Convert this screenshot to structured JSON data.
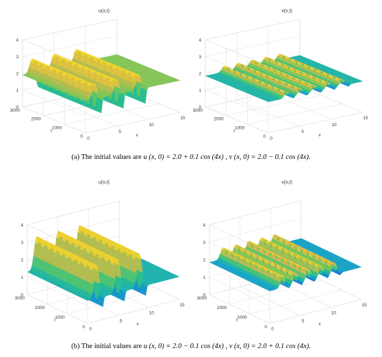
{
  "captions": [
    {
      "label": "(a)",
      "text": "The initial values are",
      "equation": "u (x, 0) = 2.0 + 0.1 cos (4x) , v (x, 0) = 2.0 − 0.1 cos (4x)."
    },
    {
      "label": "(b)",
      "text": "The initial values are",
      "equation": "u (x, 0) = 2.0 − 0.1 cos (4x) , v (x, 0) = 2.0 + 0.1 cos (4x)."
    }
  ],
  "chart_data": [
    {
      "type": "surface",
      "title": "u(x,t)",
      "xlabel": "x",
      "ylabel": "t",
      "zlabel": "",
      "xlim": [
        0,
        15
      ],
      "ylim": [
        0,
        3000
      ],
      "zlim": [
        0,
        4
      ],
      "xticks": [
        "0",
        "5",
        "10",
        "15"
      ],
      "yticks": [
        "0",
        "1000",
        "2000",
        "3000"
      ],
      "zticks": [
        "0",
        "1",
        "2",
        "3",
        "4"
      ],
      "ridge_x": [
        1.5,
        5.0,
        8.5
      ],
      "base_value": 1.9,
      "peak_value": 2.75,
      "trough_value": 0.05,
      "colormap": [
        "#3a22a6",
        "#1f64dc",
        "#16a9c3",
        "#2cc08a",
        "#7ac758",
        "#d2b84c",
        "#f8dd22"
      ]
    },
    {
      "type": "surface",
      "title": "v(x,t)",
      "xlabel": "x",
      "ylabel": "t",
      "zlabel": "",
      "xlim": [
        0,
        15
      ],
      "ylim": [
        0,
        3000
      ],
      "zlim": [
        0,
        4
      ],
      "xticks": [
        "0",
        "5",
        "10",
        "15"
      ],
      "yticks": [
        "0",
        "1000",
        "2000",
        "3000"
      ],
      "zticks": [
        "0",
        "1",
        "2",
        "3",
        "4"
      ],
      "ridge_x": [
        3.0,
        5.2,
        7.4,
        9.6,
        11.8
      ],
      "base_value": 1.85,
      "peak_value": 2.2,
      "trough_value": 1.6,
      "colormap": [
        "#3a22a6",
        "#1f64dc",
        "#16a9c3",
        "#2cc08a",
        "#7ac758",
        "#d2b84c",
        "#f8dd22"
      ]
    },
    {
      "type": "surface",
      "title": "u(x,t)",
      "xlabel": "x",
      "ylabel": "t",
      "zlabel": "",
      "xlim": [
        0,
        15
      ],
      "ylim": [
        0,
        3000
      ],
      "zlim": [
        0,
        4
      ],
      "xticks": [
        "0",
        "5",
        "10",
        "15"
      ],
      "yticks": [
        "0",
        "1000",
        "2000",
        "3000"
      ],
      "zticks": [
        "0",
        "1",
        "2",
        "3",
        "4"
      ],
      "ridge_x": [
        1.5,
        5.0,
        8.5
      ],
      "base_value": 1.3,
      "peak_value": 3.2,
      "trough_value": 0.05,
      "colormap": [
        "#3a22a6",
        "#1f64dc",
        "#16a9c3",
        "#2cc08a",
        "#7ac758",
        "#d2b84c",
        "#f8dd22"
      ]
    },
    {
      "type": "surface",
      "title": "v(x,t)",
      "xlabel": "x",
      "ylabel": "t",
      "zlabel": "",
      "xlim": [
        0,
        15
      ],
      "ylim": [
        0,
        3000
      ],
      "zlim": [
        0,
        4
      ],
      "xticks": [
        "0",
        "5",
        "10",
        "15"
      ],
      "yticks": [
        "0",
        "1000",
        "2000",
        "3000"
      ],
      "zticks": [
        "0",
        "1",
        "2",
        "3",
        "4"
      ],
      "ridge_x": [
        2.2,
        4.3,
        6.4,
        8.5,
        10.6
      ],
      "base_value": 1.85,
      "peak_value": 2.5,
      "trough_value": 1.55,
      "colormap": [
        "#3a22a6",
        "#1f64dc",
        "#16a9c3",
        "#2cc08a",
        "#7ac758",
        "#d2b84c",
        "#f8dd22"
      ]
    }
  ]
}
